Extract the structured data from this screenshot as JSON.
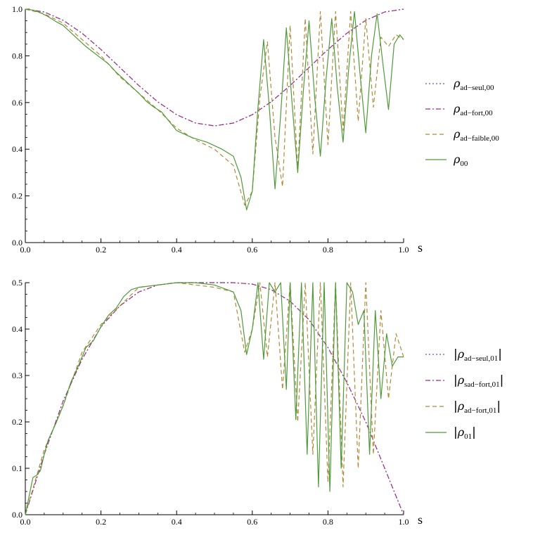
{
  "chart_data": [
    {
      "type": "line",
      "xlabel": "s",
      "ylabel": "",
      "xlim": [
        0,
        1
      ],
      "ylim": [
        0,
        1
      ],
      "x_ticks": [
        "0.0",
        "0.2",
        "0.4",
        "0.6",
        "0.8",
        "1.0"
      ],
      "y_ticks": [
        "0.0",
        "0.2",
        "0.4",
        "0.6",
        "0.8",
        "1.0"
      ],
      "legend_position": "right",
      "series": [
        {
          "name": "ρad−seul,00",
          "legend": {
            "main": "ρ",
            "sub": "ad−seul,00",
            "bars": false
          },
          "color": "#5b5ba8",
          "dash": "2,3",
          "x": [
            0,
            0.05,
            0.1,
            0.15,
            0.2,
            0.25,
            0.3,
            0.35,
            0.4,
            0.45,
            0.5,
            0.55,
            0.6,
            0.65,
            0.7,
            0.75,
            0.8,
            0.85,
            0.9,
            0.95,
            1.0
          ],
          "y": [
            1.0,
            0.988,
            0.952,
            0.897,
            0.827,
            0.75,
            0.673,
            0.603,
            0.548,
            0.512,
            0.5,
            0.512,
            0.548,
            0.603,
            0.673,
            0.75,
            0.827,
            0.897,
            0.952,
            0.988,
            1.0
          ]
        },
        {
          "name": "ρad−fort,00",
          "legend": {
            "main": "ρ",
            "sub": "ad−fort,00",
            "bars": false
          },
          "color": "#9b2d8a",
          "dash": "7,3,2,3",
          "x": [
            0,
            0.05,
            0.1,
            0.15,
            0.2,
            0.25,
            0.3,
            0.35,
            0.4,
            0.45,
            0.5,
            0.55,
            0.6,
            0.65,
            0.7,
            0.75,
            0.8,
            0.85,
            0.9,
            0.95,
            1.0
          ],
          "y": [
            1.0,
            0.988,
            0.952,
            0.897,
            0.827,
            0.75,
            0.673,
            0.603,
            0.548,
            0.512,
            0.5,
            0.512,
            0.548,
            0.603,
            0.673,
            0.75,
            0.827,
            0.897,
            0.952,
            0.988,
            1.0
          ]
        },
        {
          "name": "ρad−faible,00",
          "legend": {
            "main": "ρ",
            "sub": "ad−faible,00",
            "bars": false
          },
          "color": "#b08a3a",
          "dash": "6,4",
          "x": [
            0,
            0.05,
            0.1,
            0.15,
            0.2,
            0.25,
            0.3,
            0.35,
            0.4,
            0.45,
            0.5,
            0.55,
            0.58,
            0.6,
            0.62,
            0.64,
            0.66,
            0.68,
            0.7,
            0.72,
            0.74,
            0.76,
            0.78,
            0.8,
            0.82,
            0.84,
            0.86,
            0.88,
            0.9,
            0.92,
            0.94,
            0.96,
            0.98,
            1.0
          ],
          "y": [
            1.0,
            0.98,
            0.94,
            0.87,
            0.8,
            0.71,
            0.64,
            0.57,
            0.49,
            0.44,
            0.4,
            0.33,
            0.16,
            0.22,
            0.62,
            0.86,
            0.45,
            0.24,
            0.93,
            0.31,
            0.96,
            0.38,
            0.99,
            0.42,
            0.99,
            0.48,
            0.99,
            0.52,
            0.96,
            0.58,
            0.88,
            0.84,
            0.89,
            0.87
          ]
        },
        {
          "name": "ρ00",
          "legend": {
            "main": "ρ",
            "sub": "00",
            "bars": false
          },
          "color": "#4f9a3a",
          "dash": "",
          "x": [
            0,
            0.02,
            0.04,
            0.06,
            0.08,
            0.1,
            0.12,
            0.14,
            0.16,
            0.18,
            0.2,
            0.22,
            0.24,
            0.26,
            0.28,
            0.3,
            0.32,
            0.34,
            0.36,
            0.38,
            0.4,
            0.44,
            0.48,
            0.52,
            0.55,
            0.57,
            0.585,
            0.6,
            0.615,
            0.63,
            0.645,
            0.66,
            0.675,
            0.69,
            0.705,
            0.72,
            0.735,
            0.75,
            0.765,
            0.78,
            0.795,
            0.81,
            0.825,
            0.84,
            0.855,
            0.87,
            0.885,
            0.9,
            0.915,
            0.93,
            0.945,
            0.96,
            0.975,
            0.99,
            1.0
          ],
          "y": [
            1.0,
            0.996,
            0.985,
            0.968,
            0.948,
            0.93,
            0.9,
            0.87,
            0.84,
            0.815,
            0.79,
            0.765,
            0.73,
            0.7,
            0.67,
            0.64,
            0.605,
            0.58,
            0.56,
            0.52,
            0.48,
            0.45,
            0.43,
            0.4,
            0.37,
            0.28,
            0.14,
            0.22,
            0.58,
            0.87,
            0.58,
            0.23,
            0.55,
            0.92,
            0.6,
            0.3,
            0.65,
            0.95,
            0.62,
            0.37,
            0.7,
            0.96,
            0.66,
            0.43,
            0.75,
            0.99,
            0.72,
            0.47,
            0.8,
            0.98,
            0.77,
            0.57,
            0.85,
            0.89,
            0.87
          ]
        }
      ]
    },
    {
      "type": "line",
      "xlabel": "s",
      "ylabel": "",
      "xlim": [
        0,
        1
      ],
      "ylim": [
        0,
        0.5
      ],
      "x_ticks": [
        "0.0",
        "0.2",
        "0.4",
        "0.6",
        "0.8",
        "1.0"
      ],
      "y_ticks": [
        "0.0",
        "0.1",
        "0.2",
        "0.3",
        "0.4",
        "0.5"
      ],
      "legend_position": "right",
      "series": [
        {
          "name": "|ρad−seul,01|",
          "legend": {
            "main": "ρ",
            "sub": "ad−seul,01",
            "bars": true
          },
          "color": "#5b5ba8",
          "dash": "2,3",
          "x": [
            0,
            0.05,
            0.1,
            0.15,
            0.2,
            0.25,
            0.3,
            0.35,
            0.4,
            0.45,
            0.5,
            0.55,
            0.6,
            0.65,
            0.7,
            0.75,
            0.8,
            0.85,
            0.9,
            0.95,
            1.0
          ],
          "y": [
            0.0,
            0.13,
            0.245,
            0.335,
            0.405,
            0.45,
            0.48,
            0.495,
            0.5,
            0.5,
            0.5,
            0.5,
            0.497,
            0.485,
            0.46,
            0.42,
            0.36,
            0.285,
            0.2,
            0.1,
            0.0
          ]
        },
        {
          "name": "|ρsad−fort,01|",
          "legend": {
            "main": "ρ",
            "sub": "sad−fort,01",
            "bars": true
          },
          "color": "#9b2d8a",
          "dash": "7,3,2,3",
          "x": [
            0,
            0.05,
            0.1,
            0.15,
            0.2,
            0.25,
            0.3,
            0.35,
            0.4,
            0.45,
            0.5,
            0.55,
            0.6,
            0.65,
            0.7,
            0.75,
            0.8,
            0.85,
            0.9,
            0.95,
            1.0
          ],
          "y": [
            0.0,
            0.13,
            0.245,
            0.335,
            0.405,
            0.45,
            0.48,
            0.495,
            0.5,
            0.5,
            0.5,
            0.5,
            0.497,
            0.485,
            0.46,
            0.42,
            0.36,
            0.285,
            0.2,
            0.1,
            0.0
          ]
        },
        {
          "name": "|ρad−fort,01|",
          "legend": {
            "main": "ρ",
            "sub": "ad−fort,01",
            "bars": true
          },
          "color": "#b08a3a",
          "dash": "6,4",
          "x": [
            0,
            0.05,
            0.1,
            0.15,
            0.2,
            0.25,
            0.3,
            0.35,
            0.4,
            0.45,
            0.5,
            0.55,
            0.58,
            0.6,
            0.62,
            0.64,
            0.66,
            0.68,
            0.7,
            0.72,
            0.74,
            0.76,
            0.78,
            0.8,
            0.82,
            0.84,
            0.86,
            0.88,
            0.9,
            0.92,
            0.94,
            0.96,
            0.98,
            1.0
          ],
          "y": [
            0.0,
            0.14,
            0.235,
            0.35,
            0.41,
            0.45,
            0.49,
            0.495,
            0.5,
            0.495,
            0.49,
            0.48,
            0.35,
            0.4,
            0.5,
            0.34,
            0.5,
            0.27,
            0.5,
            0.2,
            0.5,
            0.13,
            0.5,
            0.07,
            0.5,
            0.06,
            0.5,
            0.1,
            0.5,
            0.13,
            0.44,
            0.25,
            0.39,
            0.34
          ]
        },
        {
          "name": "|ρ01|",
          "legend": {
            "main": "ρ",
            "sub": "01",
            "bars": true
          },
          "color": "#4f9a3a",
          "dash": "",
          "x": [
            0,
            0.01,
            0.02,
            0.03,
            0.04,
            0.05,
            0.06,
            0.08,
            0.1,
            0.12,
            0.14,
            0.16,
            0.18,
            0.2,
            0.22,
            0.24,
            0.26,
            0.28,
            0.3,
            0.35,
            0.4,
            0.45,
            0.5,
            0.55,
            0.57,
            0.585,
            0.6,
            0.615,
            0.63,
            0.645,
            0.66,
            0.675,
            0.69,
            0.7,
            0.715,
            0.73,
            0.745,
            0.76,
            0.775,
            0.79,
            0.805,
            0.82,
            0.835,
            0.85,
            0.865,
            0.88,
            0.895,
            0.91,
            0.925,
            0.94,
            0.955,
            0.97,
            0.985,
            1.0
          ],
          "y": [
            0.0,
            0.04,
            0.08,
            0.085,
            0.095,
            0.13,
            0.16,
            0.195,
            0.235,
            0.285,
            0.32,
            0.36,
            0.375,
            0.405,
            0.43,
            0.445,
            0.47,
            0.485,
            0.49,
            0.495,
            0.5,
            0.5,
            0.495,
            0.48,
            0.44,
            0.345,
            0.4,
            0.5,
            0.335,
            0.5,
            0.48,
            0.5,
            0.27,
            0.5,
            0.205,
            0.5,
            0.13,
            0.5,
            0.06,
            0.5,
            0.05,
            0.5,
            0.1,
            0.5,
            0.48,
            0.41,
            0.44,
            0.13,
            0.44,
            0.25,
            0.39,
            0.32,
            0.34,
            0.34
          ]
        }
      ]
    }
  ]
}
